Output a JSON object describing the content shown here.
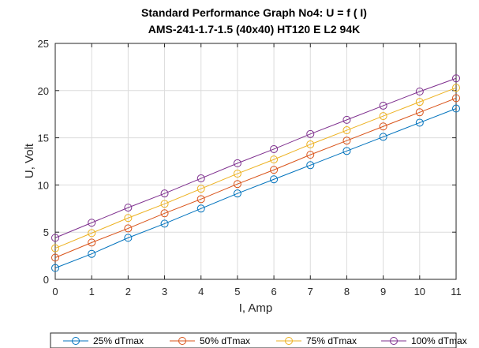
{
  "chart_data": {
    "type": "line",
    "title": "Standard Performance Graph No4: U = f ( I)",
    "subtitle": "AMS-241-1.7-1.5 (40x40) HT120 E L2 94K",
    "xlabel": "I, Amp",
    "ylabel": "U, Volt",
    "xlim": [
      0,
      11
    ],
    "ylim": [
      0,
      25
    ],
    "xticks": [
      "0",
      "1",
      "2",
      "3",
      "4",
      "5",
      "6",
      "7",
      "8",
      "9",
      "10",
      "11"
    ],
    "yticks": [
      "0",
      "5",
      "10",
      "15",
      "20",
      "25"
    ],
    "grid": true,
    "legend_position": "bottom",
    "x": [
      0,
      1,
      2,
      3,
      4,
      5,
      6,
      7,
      8,
      9,
      10,
      11
    ],
    "series": [
      {
        "name": "25% dTmax",
        "color": "#0072BD",
        "values": [
          1.2,
          2.7,
          4.4,
          5.9,
          7.5,
          9.1,
          10.6,
          12.1,
          13.6,
          15.1,
          16.6,
          18.1
        ]
      },
      {
        "name": "50% dTmax",
        "color": "#D95319",
        "values": [
          2.3,
          3.9,
          5.4,
          7.0,
          8.5,
          10.1,
          11.6,
          13.2,
          14.7,
          16.2,
          17.7,
          19.2
        ]
      },
      {
        "name": "75% dTmax",
        "color": "#EDB120",
        "values": [
          3.3,
          4.9,
          6.5,
          8.0,
          9.6,
          11.2,
          12.7,
          14.3,
          15.8,
          17.3,
          18.8,
          20.3
        ]
      },
      {
        "name": "100% dTmax",
        "color": "#7E2F8E",
        "values": [
          4.4,
          6.0,
          7.6,
          9.1,
          10.7,
          12.3,
          13.8,
          15.4,
          16.9,
          18.4,
          19.9,
          21.3
        ]
      }
    ]
  }
}
